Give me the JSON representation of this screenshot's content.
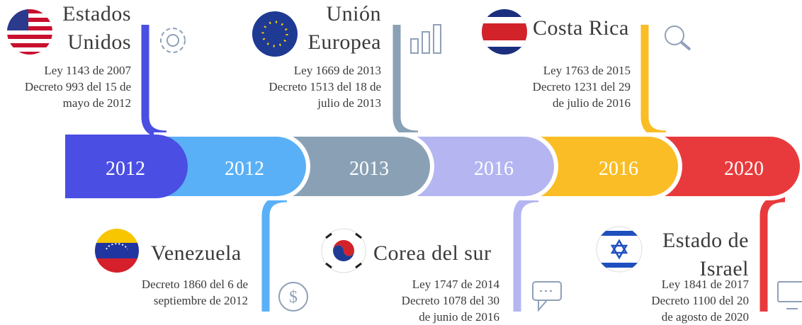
{
  "timeline": [
    {
      "year": "2012",
      "color": "#4b4ee2",
      "country": [
        "Estados",
        "Unidos"
      ],
      "details": [
        "Ley 1143 de 2007",
        "Decreto 993 del 15 de",
        "mayo de 2012"
      ]
    },
    {
      "year": "2012",
      "color": "#5ab0f6",
      "country": [
        "Venezuela"
      ],
      "details": [
        "Decreto 1860 del 6 de",
        "septiembre de 2012"
      ]
    },
    {
      "year": "2013",
      "color": "#8aa1b5",
      "country": [
        "Unión",
        "Europea"
      ],
      "details": [
        "Ley 1669 de 2013",
        "Decreto 1513 del 18 de",
        "julio de 2013"
      ]
    },
    {
      "year": "2016",
      "color": "#b4b5f1",
      "country": [
        "Corea del sur"
      ],
      "details": [
        "Ley 1747 de 2014",
        "Decreto 1078 del 30",
        "de junio de 2016"
      ]
    },
    {
      "year": "2016",
      "color": "#fbbd25",
      "country": [
        "Costa Rica"
      ],
      "details": [
        "Ley 1763 de 2015",
        "Decreto 1231 del 29",
        "de julio de 2016"
      ]
    },
    {
      "year": "2020",
      "color": "#e83a3c",
      "country": [
        "Estado de",
        "Israel"
      ],
      "details": [
        "Ley 1841 de 2017",
        "Decreto 1100 del 20",
        "de agosto de 2020"
      ]
    }
  ]
}
